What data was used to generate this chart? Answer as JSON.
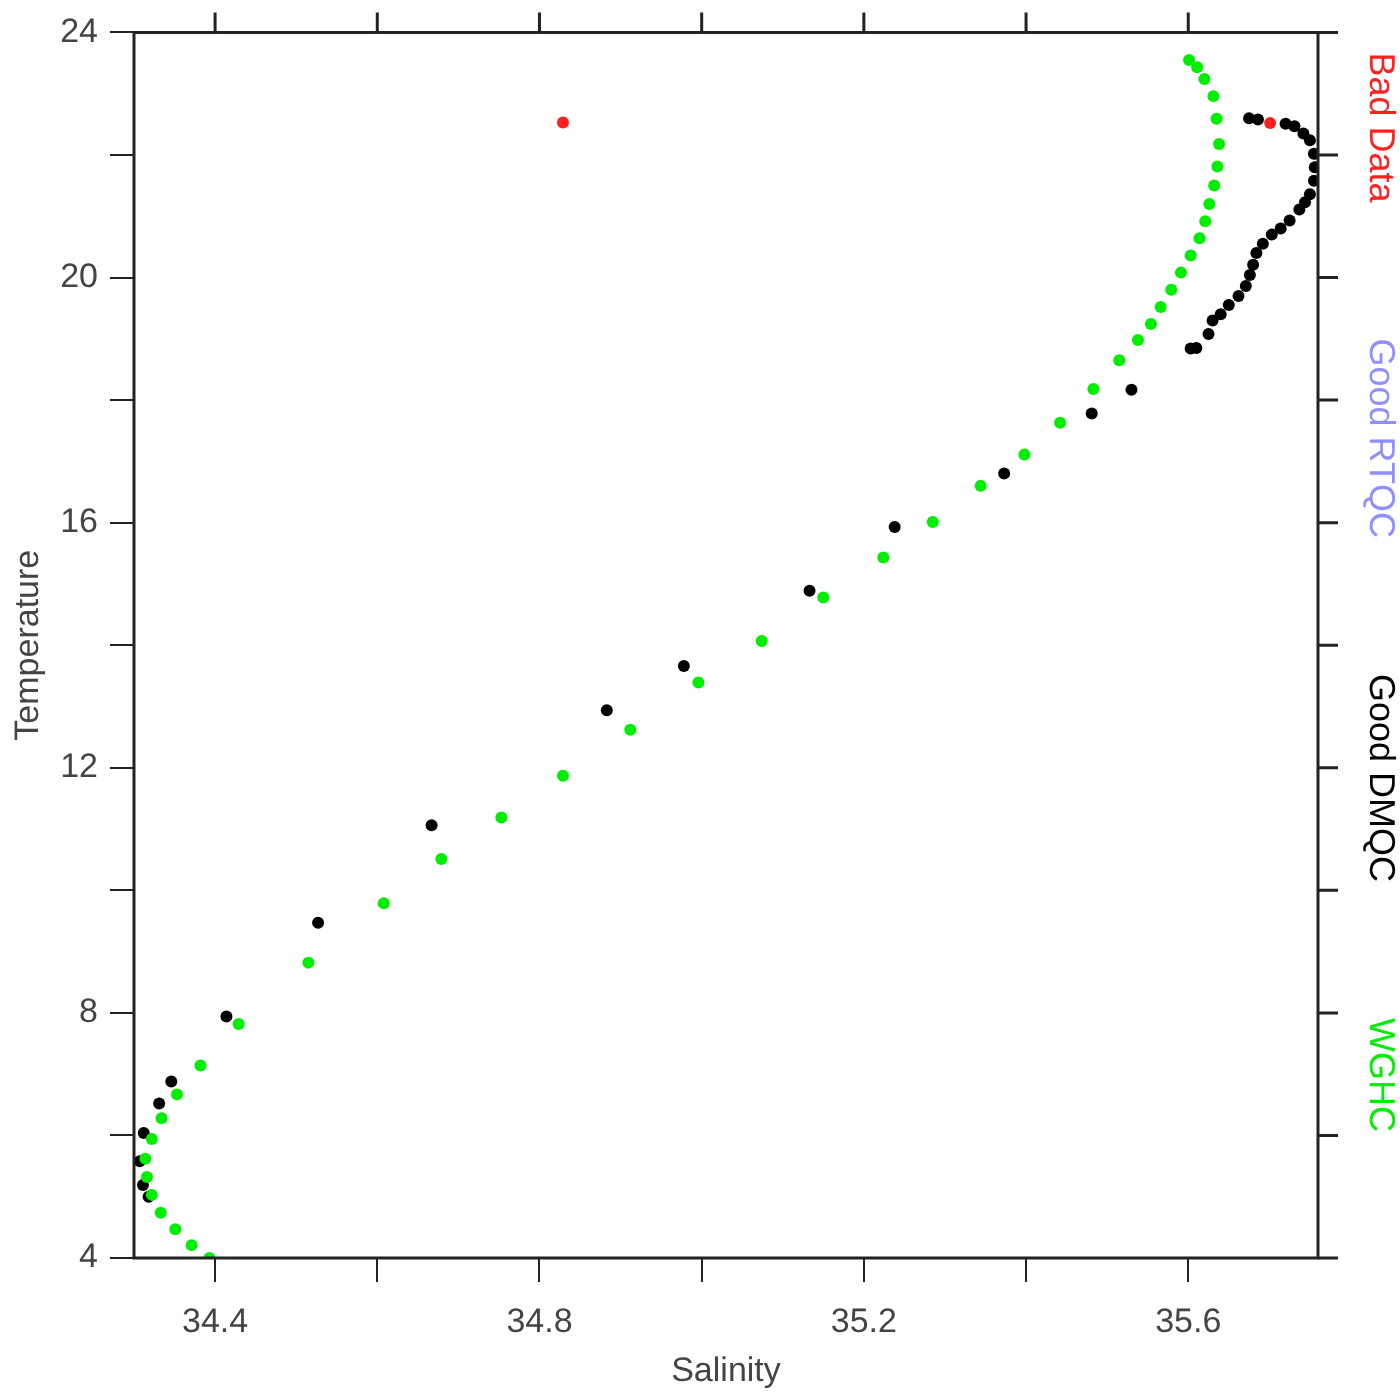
{
  "chart_data": {
    "type": "scatter",
    "xlabel": "Salinity",
    "ylabel": "Temperature",
    "xlim": [
      34.3,
      35.76
    ],
    "ylim": [
      4,
      24
    ],
    "xticks": [
      34.4,
      {
        "value": 34.6,
        "label": null
      },
      34.8,
      {
        "value": 35.0,
        "label": null
      },
      35.2,
      {
        "value": 35.4,
        "label": null
      },
      35.6
    ],
    "yticks": [
      4,
      {
        "value": 6,
        "label": null
      },
      8,
      {
        "value": 10,
        "label": null
      },
      12,
      {
        "value": 14,
        "label": null
      },
      16,
      {
        "value": 18,
        "label": null
      },
      20,
      {
        "value": 22,
        "label": null
      },
      24
    ],
    "grid": false,
    "legend": "right",
    "marker": "circle",
    "series": [
      {
        "name": "Bad Data",
        "color": "#ff2020",
        "x": [
          34.829,
          35.701
        ],
        "values": [
          22.53,
          22.52
        ]
      },
      {
        "name": "Good RTQC",
        "color": "#8f8fff"
      },
      {
        "name": "Good DMQC",
        "color": "#000000",
        "x": [
          34.312,
          34.307,
          34.311,
          34.318,
          34.331,
          34.346,
          34.414,
          34.527,
          34.667,
          34.883,
          34.978,
          35.133,
          35.238,
          35.373,
          35.481,
          35.53,
          35.603,
          35.61,
          35.625,
          35.63,
          35.64,
          35.65,
          35.662,
          35.671,
          35.676,
          35.68,
          35.684,
          35.692,
          35.703,
          35.714,
          35.725,
          35.737,
          35.744,
          35.75,
          35.755,
          35.756,
          35.755,
          35.75,
          35.742,
          35.731,
          35.72,
          35.686,
          35.675
        ],
        "values": [
          6.04,
          5.58,
          5.19,
          5.0,
          6.52,
          6.88,
          7.94,
          9.47,
          11.06,
          12.94,
          13.66,
          14.89,
          15.93,
          16.8,
          17.78,
          18.17,
          18.84,
          18.85,
          19.08,
          19.3,
          19.4,
          19.55,
          19.7,
          19.86,
          20.04,
          20.21,
          20.4,
          20.55,
          20.7,
          20.8,
          20.93,
          21.11,
          21.23,
          21.36,
          21.58,
          21.8,
          22.02,
          22.24,
          22.35,
          22.47,
          22.51,
          22.58,
          22.6
        ]
      },
      {
        "name": "WGHC",
        "color": "#00ee00",
        "x": [
          34.393,
          34.371,
          34.351,
          34.333,
          34.322,
          34.316,
          34.314,
          34.322,
          34.334,
          34.353,
          34.382,
          34.429,
          34.515,
          34.608,
          34.679,
          34.753,
          34.829,
          34.912,
          34.996,
          35.074,
          35.15,
          35.224,
          35.285,
          35.344,
          35.398,
          35.442,
          35.483,
          35.515,
          35.538,
          35.554,
          35.566,
          35.579,
          35.591,
          35.603,
          35.614,
          35.621,
          35.626,
          35.632,
          35.636,
          35.638,
          35.635,
          35.631,
          35.62,
          35.611,
          35.601
        ],
        "values": [
          4.0,
          4.21,
          4.47,
          4.74,
          5.03,
          5.32,
          5.62,
          5.94,
          6.28,
          6.67,
          7.14,
          7.82,
          8.82,
          9.79,
          10.51,
          11.19,
          11.87,
          12.62,
          13.39,
          14.07,
          14.78,
          15.43,
          16.01,
          16.6,
          17.11,
          17.63,
          18.18,
          18.65,
          18.98,
          19.24,
          19.52,
          19.8,
          20.08,
          20.36,
          20.64,
          20.92,
          21.2,
          21.5,
          21.81,
          22.18,
          22.59,
          22.96,
          23.24,
          23.43,
          23.55
        ]
      }
    ]
  }
}
